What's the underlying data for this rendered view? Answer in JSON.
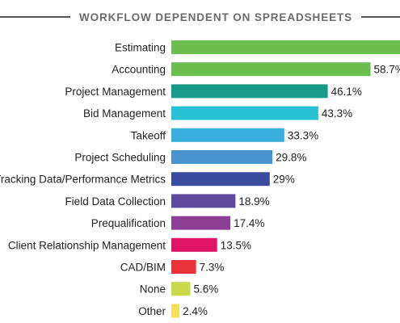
{
  "chart_data": {
    "type": "bar",
    "orientation": "horizontal",
    "title": "WORKFLOW DEPENDENT ON SPREADSHEETS",
    "categories": [
      "Estimating",
      "Accounting",
      "Project Management",
      "Bid Management",
      "Takeoff",
      "Project Scheduling",
      "Tracking Data/Performance Metrics",
      "Field Data Collection",
      "Prequalification",
      "Client Relationship Management",
      "CAD/BIM",
      "None",
      "Other"
    ],
    "values": [
      70,
      58.7,
      46.1,
      43.3,
      33.3,
      29.8,
      29,
      18.9,
      17.4,
      13.5,
      7.3,
      5.6,
      2.4
    ],
    "value_labels": [
      "",
      "58.7%",
      "46.1%",
      "43.3%",
      "33.3%",
      "29.8%",
      "29%",
      "18.9%",
      "17.4%",
      "13.5%",
      "7.3%",
      "5.6%",
      "2.4%"
    ],
    "colors": [
      "#6cbf4f",
      "#6cbf4f",
      "#1a9a88",
      "#27c0d4",
      "#3aaedc",
      "#4793cb",
      "#3c4c9c",
      "#5e4a9c",
      "#8c3f94",
      "#e01464",
      "#e8323a",
      "#c8d94a",
      "#f4e05a"
    ],
    "title_rule_color": "#555555",
    "xlabel": "",
    "ylabel": "",
    "xlim": [
      0,
      70
    ],
    "unit": "%",
    "grid": false,
    "legend": "none"
  }
}
